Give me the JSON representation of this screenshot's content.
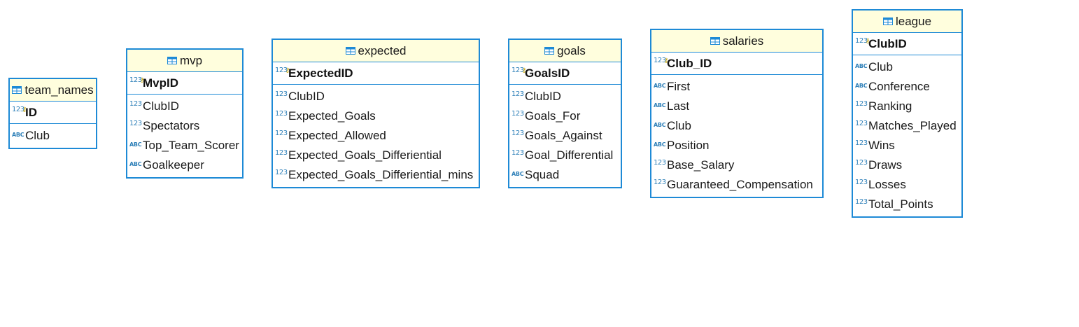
{
  "colors": {
    "border": "#1e8ad6",
    "header_bg": "#fffedd",
    "type_icon": "#2d7fb8",
    "key_icon": "#c9a400"
  },
  "icons": {
    "table": "table-icon",
    "number_type": "123",
    "text_type": "ABC",
    "primary_key": "key-icon"
  },
  "entities": {
    "team_names": {
      "title": "team_names",
      "pk": "ID",
      "attrs": [
        "Club"
      ]
    },
    "mvp": {
      "title": "mvp",
      "pk": "MvpID",
      "attrs": [
        "ClubID",
        "Spectators",
        "Top_Team_Scorer",
        "Goalkeeper"
      ]
    },
    "expected": {
      "title": "expected",
      "pk": "ExpectedID",
      "attrs": [
        "ClubID",
        "Expected_Goals",
        "Expected_Allowed",
        "Expected_Goals_Differiential",
        "Expected_Goals_Differiential_mins"
      ]
    },
    "goals": {
      "title": "goals",
      "pk": "GoalsID",
      "attrs": [
        "ClubID",
        "Goals_For",
        "Goals_Against",
        "Goal_Differential",
        "Squad"
      ]
    },
    "salaries": {
      "title": "salaries",
      "pk": "Club_ID",
      "attrs": [
        "First",
        "Last",
        "Club",
        "Position",
        "Base_Salary",
        "Guaranteed_Compensation"
      ]
    },
    "league": {
      "title": "league",
      "pk": "ClubID",
      "attrs": [
        "Club",
        "Conference",
        "Ranking",
        "Matches_Played",
        "Wins",
        "Draws",
        "Losses",
        "Total_Points"
      ]
    }
  }
}
